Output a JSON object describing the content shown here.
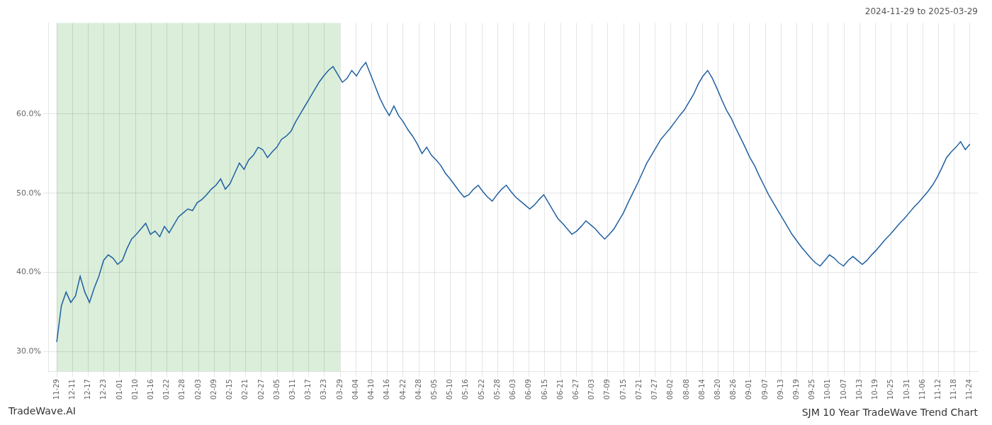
{
  "chart_data": {
    "type": "line",
    "title": "SJM 10 Year TradeWave Trend Chart",
    "subtitle": "2024-11-29 to 2025-03-29",
    "annotations": [
      {
        "text": "TradeWave.AI"
      }
    ],
    "color": "#2060a0",
    "grid": true,
    "shaded_region": {
      "x": [
        0,
        18
      ],
      "color": "#daeeda"
    },
    "xlim": [
      -0.5,
      58.5
    ],
    "xticks": [
      {
        "value": 0,
        "label": "11-29"
      },
      {
        "value": 1,
        "label": "12-11"
      },
      {
        "value": 2,
        "label": "12-17"
      },
      {
        "value": 3,
        "label": "12-23"
      },
      {
        "value": 4,
        "label": "01-01"
      },
      {
        "value": 5,
        "label": "01-10"
      },
      {
        "value": 6,
        "label": "01-16"
      },
      {
        "value": 7,
        "label": "01-22"
      },
      {
        "value": 8,
        "label": "01-28"
      },
      {
        "value": 9,
        "label": "02-03"
      },
      {
        "value": 10,
        "label": "02-09"
      },
      {
        "value": 11,
        "label": "02-15"
      },
      {
        "value": 12,
        "label": "02-21"
      },
      {
        "value": 13,
        "label": "02-27"
      },
      {
        "value": 14,
        "label": "03-05"
      },
      {
        "value": 15,
        "label": "03-11"
      },
      {
        "value": 16,
        "label": "03-17"
      },
      {
        "value": 17,
        "label": "03-23"
      },
      {
        "value": 18,
        "label": "03-29"
      },
      {
        "value": 19,
        "label": "04-04"
      },
      {
        "value": 20,
        "label": "04-10"
      },
      {
        "value": 21,
        "label": "04-16"
      },
      {
        "value": 22,
        "label": "04-22"
      },
      {
        "value": 23,
        "label": "04-28"
      },
      {
        "value": 24,
        "label": "05-05"
      },
      {
        "value": 25,
        "label": "05-10"
      },
      {
        "value": 26,
        "label": "05-16"
      },
      {
        "value": 27,
        "label": "05-22"
      },
      {
        "value": 28,
        "label": "05-28"
      },
      {
        "value": 29,
        "label": "06-03"
      },
      {
        "value": 30,
        "label": "06-09"
      },
      {
        "value": 31,
        "label": "06-15"
      },
      {
        "value": 32,
        "label": "06-21"
      },
      {
        "value": 33,
        "label": "06-27"
      },
      {
        "value": 34,
        "label": "07-03"
      },
      {
        "value": 35,
        "label": "07-09"
      },
      {
        "value": 36,
        "label": "07-15"
      },
      {
        "value": 37,
        "label": "07-21"
      },
      {
        "value": 38,
        "label": "07-27"
      },
      {
        "value": 39,
        "label": "08-02"
      },
      {
        "value": 40,
        "label": "08-08"
      },
      {
        "value": 41,
        "label": "08-14"
      },
      {
        "value": 42,
        "label": "08-20"
      },
      {
        "value": 43,
        "label": "08-26"
      },
      {
        "value": 44,
        "label": "09-01"
      },
      {
        "value": 45,
        "label": "09-07"
      },
      {
        "value": 46,
        "label": "09-13"
      },
      {
        "value": 47,
        "label": "09-19"
      },
      {
        "value": 48,
        "label": "09-25"
      },
      {
        "value": 49,
        "label": "10-01"
      },
      {
        "value": 50,
        "label": "10-07"
      },
      {
        "value": 51,
        "label": "10-13"
      },
      {
        "value": 52,
        "label": "10-19"
      },
      {
        "value": 53,
        "label": "10-25"
      },
      {
        "value": 54,
        "label": "10-31"
      },
      {
        "value": 55,
        "label": "11-06"
      },
      {
        "value": 56,
        "label": "11-12"
      },
      {
        "value": 57,
        "label": "11-18"
      },
      {
        "value": 58,
        "label": "11-24"
      }
    ],
    "ylim": [
      0.275,
      0.715
    ],
    "yticks": [
      {
        "value": 0.3,
        "label": "30.0%"
      },
      {
        "value": 0.4,
        "label": "40.0%"
      },
      {
        "value": 0.5,
        "label": "50.0%"
      },
      {
        "value": 0.6,
        "label": "60.0%"
      }
    ],
    "x": [
      0,
      0.2974,
      0.5949,
      0.8923,
      1.1897,
      1.4872,
      1.7846,
      2.0821,
      2.3795,
      2.6769,
      2.9744,
      3.2718,
      3.5692,
      3.8667,
      4.1641,
      4.4615,
      4.759,
      5.0564,
      5.3538,
      5.6513,
      5.9487,
      6.2462,
      6.5436,
      6.841,
      7.1385,
      7.4359,
      7.7333,
      8.0308,
      8.3282,
      8.6256,
      8.9231,
      9.2205,
      9.5179,
      9.8154,
      10.1128,
      10.4103,
      10.7077,
      11.0051,
      11.3026,
      11.6,
      11.8974,
      12.1949,
      12.4923,
      12.7897,
      13.0872,
      13.3846,
      13.6821,
      13.9795,
      14.2769,
      14.5744,
      14.8718,
      15.1692,
      15.4667,
      15.7641,
      16.0615,
      16.359,
      16.6564,
      16.9538,
      17.2513,
      17.5487,
      17.8462,
      18.1436,
      18.441,
      18.7385,
      19.0359,
      19.3333,
      19.6308,
      19.9282,
      20.2256,
      20.5231,
      20.8205,
      21.1179,
      21.4154,
      21.7128,
      22.0103,
      22.3077,
      22.6051,
      22.9026,
      23.2,
      23.4974,
      23.7949,
      24.0923,
      24.3897,
      24.6872,
      24.9846,
      25.2821,
      25.5795,
      25.8769,
      26.1744,
      26.4718,
      26.7692,
      27.0667,
      27.3641,
      27.6615,
      27.959,
      28.2564,
      28.5538,
      28.8513,
      29.1487,
      29.4462,
      29.7436,
      30.041,
      30.3385,
      30.6359,
      30.9333,
      31.2308,
      31.5282,
      31.8256,
      32.1231,
      32.4205,
      32.7179,
      33.0154,
      33.3128,
      33.6103,
      33.9077,
      34.2051,
      34.5026,
      34.8,
      35.0974,
      35.3949,
      35.6923,
      35.9897,
      36.2872,
      36.5846,
      36.8821,
      37.1795,
      37.4769,
      37.7744,
      38.0718,
      38.3692,
      38.6667,
      38.9641,
      39.2615,
      39.559,
      39.8564,
      40.1538,
      40.4513,
      40.7487,
      41.0462,
      41.3436,
      41.641,
      41.9385,
      42.2359,
      42.5333,
      42.8308,
      43.1282,
      43.4256,
      43.7231,
      44.0205,
      44.3179,
      44.6154,
      44.9128,
      45.2103,
      45.5077,
      45.8051,
      46.1026,
      46.4,
      46.6974,
      46.9949,
      47.2923,
      47.5897,
      47.8872,
      48.1846,
      48.4821,
      48.7795,
      49.0769,
      49.3744,
      49.6718,
      49.9692,
      50.2667,
      50.5641,
      50.8615,
      51.159,
      51.4564,
      51.7538,
      52.0513,
      52.3487,
      52.6462,
      52.9436,
      53.241,
      53.5385,
      53.8359,
      54.1333,
      54.4308,
      54.7282,
      55.0256,
      55.3231,
      55.6205,
      55.9179,
      56.2154,
      56.5128,
      56.8103,
      57.1077,
      57.4051,
      57.7026,
      58
    ],
    "values": [
      0.312,
      0.358,
      0.375,
      0.362,
      0.37,
      0.395,
      0.375,
      0.362,
      0.38,
      0.395,
      0.415,
      0.422,
      0.418,
      0.41,
      0.415,
      0.43,
      0.442,
      0.448,
      0.455,
      0.462,
      0.448,
      0.452,
      0.445,
      0.458,
      0.45,
      0.46,
      0.47,
      0.475,
      0.48,
      0.478,
      0.488,
      0.492,
      0.498,
      0.505,
      0.51,
      0.518,
      0.505,
      0.512,
      0.525,
      0.538,
      0.53,
      0.542,
      0.548,
      0.558,
      0.555,
      0.545,
      0.552,
      0.558,
      0.568,
      0.572,
      0.578,
      0.59,
      0.6,
      0.61,
      0.62,
      0.63,
      0.64,
      0.648,
      0.655,
      0.66,
      0.65,
      0.64,
      0.645,
      0.655,
      0.648,
      0.658,
      0.665,
      0.65,
      0.635,
      0.62,
      0.608,
      0.598,
      0.61,
      0.598,
      0.59,
      0.58,
      0.572,
      0.562,
      0.55,
      0.558,
      0.548,
      0.542,
      0.535,
      0.525,
      0.518,
      0.51,
      0.502,
      0.495,
      0.498,
      0.505,
      0.51,
      0.502,
      0.495,
      0.49,
      0.498,
      0.505,
      0.51,
      0.502,
      0.495,
      0.49,
      0.485,
      0.48,
      0.485,
      0.492,
      0.498,
      0.488,
      0.478,
      0.468,
      0.462,
      0.455,
      0.448,
      0.452,
      0.458,
      0.465,
      0.46,
      0.455,
      0.448,
      0.442,
      0.448,
      0.455,
      0.465,
      0.475,
      0.488,
      0.5,
      0.512,
      0.525,
      0.538,
      0.548,
      0.558,
      0.568,
      0.575,
      0.582,
      0.59,
      0.598,
      0.605,
      0.615,
      0.625,
      0.638,
      0.648,
      0.655,
      0.645,
      0.632,
      0.618,
      0.605,
      0.595,
      0.582,
      0.57,
      0.558,
      0.545,
      0.535,
      0.522,
      0.51,
      0.498,
      0.488,
      0.478,
      0.468,
      0.458,
      0.448,
      0.44,
      0.432,
      0.425,
      0.418,
      0.412,
      0.408,
      0.415,
      0.422,
      0.418,
      0.412,
      0.408,
      0.415,
      0.42,
      0.415,
      0.41,
      0.415,
      0.422,
      0.428,
      0.435,
      0.442,
      0.448,
      0.455,
      0.462,
      0.468,
      0.475,
      0.482,
      0.488,
      0.495,
      0.502,
      0.51,
      0.52,
      0.532,
      0.545,
      0.552,
      0.558,
      0.565,
      0.555,
      0.562
    ]
  }
}
